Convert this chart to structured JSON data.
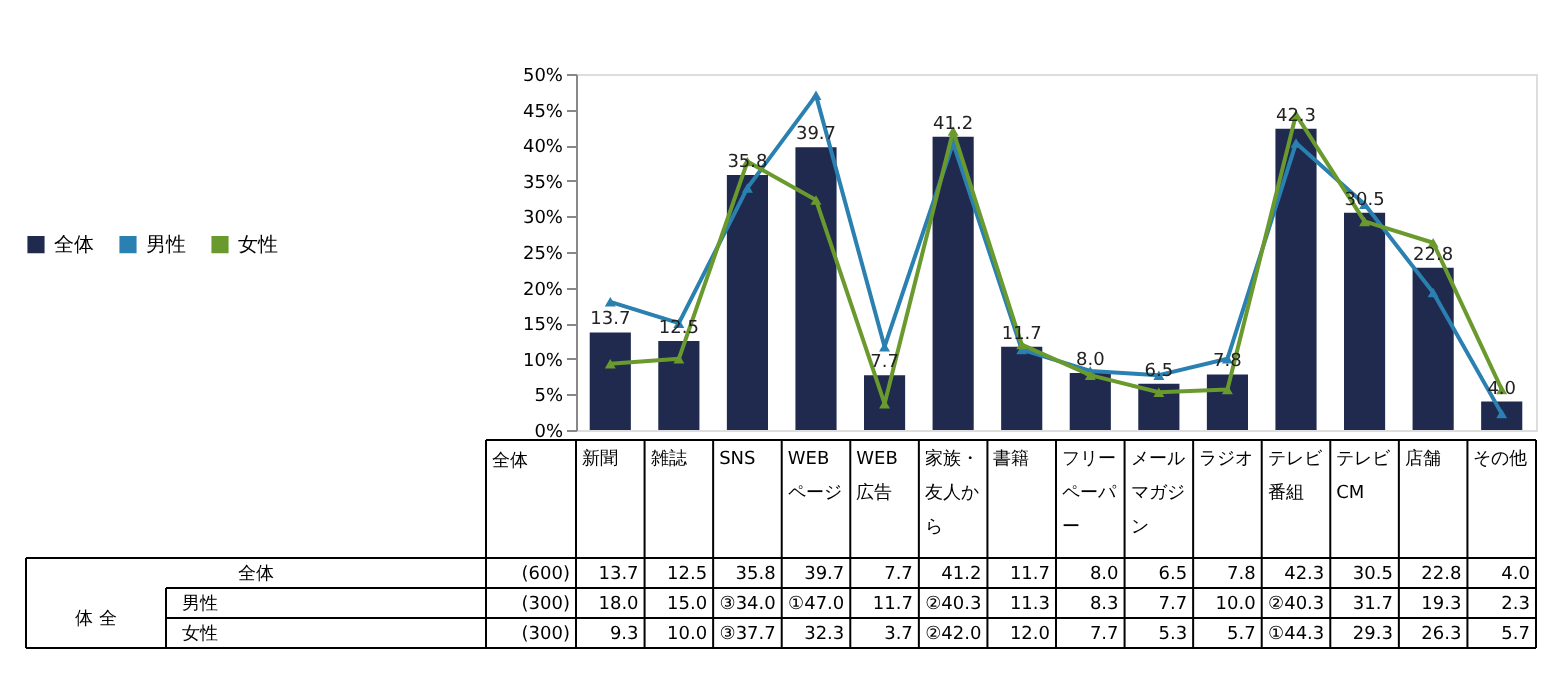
{
  "chart_data": {
    "type": "bar",
    "categories": [
      "新聞",
      "雑誌",
      "SNS",
      "WEBページ",
      "WEB広告",
      "家族・友人から",
      "書籍",
      "フリーペーパー",
      "メールマガジン",
      "ラジオ",
      "テレビ番組",
      "テレビCM",
      "店舗",
      "その他"
    ],
    "series": [
      {
        "name": "全体",
        "color": "#1f2a4e",
        "values": [
          13.7,
          12.5,
          35.8,
          39.7,
          7.7,
          41.2,
          11.7,
          8.0,
          6.5,
          7.8,
          42.3,
          30.5,
          22.8,
          4.0
        ],
        "value_labels": [
          "13.7",
          "12.5",
          "35.8",
          "39.7",
          "7.7",
          "41.2",
          "11.7",
          "8.0",
          "6.5",
          "7.8",
          "42.3",
          "30.5",
          "22.8",
          "4.0"
        ]
      },
      {
        "name": "男性",
        "type": "line",
        "color": "#2a80b0",
        "marker": "triangle",
        "values": [
          18.0,
          15.0,
          34.0,
          47.0,
          11.7,
          40.3,
          11.3,
          8.3,
          7.7,
          10.0,
          40.3,
          31.7,
          19.3,
          2.3
        ],
        "value_labels": [
          "18.0",
          "15.0",
          "③34.0",
          "①47.0",
          "11.7",
          "②40.3",
          "11.3",
          "8.3",
          "7.7",
          "10.0",
          "②40.3",
          "31.7",
          "19.3",
          "2.3"
        ]
      },
      {
        "name": "女性",
        "type": "line",
        "color": "#6a9a2e",
        "marker": "triangle",
        "values": [
          9.3,
          10.0,
          37.7,
          32.3,
          3.7,
          42.0,
          12.0,
          7.7,
          5.3,
          5.7,
          44.3,
          29.3,
          26.3,
          5.7
        ],
        "value_labels": [
          "9.3",
          "10.0",
          "③37.7",
          "32.3",
          "3.7",
          "②42.0",
          "12.0",
          "7.7",
          "5.3",
          "5.7",
          "①44.3",
          "29.3",
          "26.3",
          "5.7"
        ]
      }
    ],
    "ylim": [
      0,
      50
    ],
    "yticks": [
      {
        "value": 0,
        "label": "0%"
      },
      {
        "value": 5,
        "label": "5%"
      },
      {
        "value": 10,
        "label": "10%"
      },
      {
        "value": 15,
        "label": "15%"
      },
      {
        "value": 20,
        "label": "20%"
      },
      {
        "value": 25,
        "label": "25%"
      },
      {
        "value": 30,
        "label": "30%"
      },
      {
        "value": 35,
        "label": "35%"
      },
      {
        "value": 40,
        "label": "40%"
      },
      {
        "value": 45,
        "label": "45%"
      },
      {
        "value": 50,
        "label": "50%"
      }
    ],
    "tick_labels": "y",
    "grid": false,
    "legend": "left",
    "annotations": [
      "全体",
      "体 全",
      "(600)",
      "(300)",
      "(300)"
    ]
  }
}
